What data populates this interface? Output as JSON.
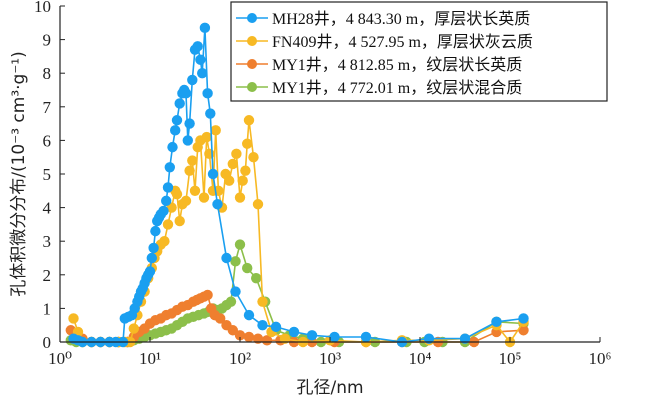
{
  "chart_data": {
    "type": "scatter",
    "mode": "lines+markers",
    "title": "",
    "xlabel": "孔径/nm",
    "ylabel": "孔体积微分分布/(10⁻³ cm³·g⁻¹)",
    "xscale": "log",
    "xlim_log10": [
      0,
      6
    ],
    "ylim": [
      0,
      10
    ],
    "xticks": [
      "10⁰",
      "10¹",
      "10²",
      "10³",
      "10⁴",
      "10⁵",
      "10⁶"
    ],
    "yticks": [
      "0",
      "1",
      "2",
      "3",
      "4",
      "5",
      "6",
      "7",
      "8",
      "9",
      "10"
    ],
    "grid": false,
    "legend_position": "top-right",
    "series": [
      {
        "name": "MH28井，4 843.30 m，厚层状长英质",
        "color": "#1a9ff0",
        "x_log10": [
          0.15,
          0.2,
          0.25,
          0.35,
          0.45,
          0.55,
          0.62,
          0.7,
          0.72,
          0.76,
          0.8,
          0.83,
          0.86,
          0.88,
          0.9,
          0.92,
          0.94,
          0.96,
          0.98,
          1.0,
          1.02,
          1.04,
          1.06,
          1.08,
          1.1,
          1.12,
          1.15,
          1.18,
          1.2,
          1.22,
          1.25,
          1.28,
          1.3,
          1.33,
          1.36,
          1.38,
          1.4,
          1.42,
          1.44,
          1.47,
          1.5,
          1.53,
          1.56,
          1.58,
          1.61,
          1.64,
          1.67,
          1.7,
          1.75,
          1.85,
          1.95,
          2.1,
          2.25,
          2.4,
          2.6,
          2.8,
          3.05,
          3.4,
          3.8,
          4.1,
          4.5,
          4.85,
          5.15
        ],
        "y": [
          0.1,
          0.05,
          0.0,
          0.0,
          0.0,
          0.0,
          0.0,
          0.0,
          0.7,
          0.75,
          0.8,
          1.0,
          1.2,
          1.35,
          1.5,
          1.6,
          1.75,
          1.9,
          2.0,
          2.1,
          2.5,
          2.8,
          3.3,
          3.6,
          3.7,
          3.8,
          3.9,
          4.2,
          4.6,
          5.2,
          5.8,
          6.3,
          6.6,
          7.1,
          7.4,
          7.5,
          7.4,
          6.0,
          6.5,
          7.8,
          8.7,
          8.8,
          8.4,
          8.0,
          9.35,
          7.4,
          6.8,
          5.0,
          4.1,
          2.5,
          1.5,
          0.8,
          0.5,
          0.45,
          0.3,
          0.2,
          0.15,
          0.15,
          0.0,
          0.1,
          0.1,
          0.6,
          0.7
        ]
      },
      {
        "name": "FN409井，4 527.95 m，厚层状灰云质",
        "color": "#f7b924",
        "x_log10": [
          0.15,
          0.2,
          0.25,
          0.35,
          0.45,
          0.55,
          0.65,
          0.72,
          0.78,
          0.82,
          0.86,
          0.9,
          0.94,
          0.98,
          1.02,
          1.05,
          1.08,
          1.12,
          1.16,
          1.2,
          1.24,
          1.28,
          1.3,
          1.33,
          1.36,
          1.4,
          1.44,
          1.47,
          1.5,
          1.53,
          1.56,
          1.6,
          1.63,
          1.66,
          1.7,
          1.73,
          1.76,
          1.8,
          1.84,
          1.88,
          1.92,
          1.96,
          2.0,
          2.03,
          2.06,
          2.08,
          2.1,
          2.15,
          2.2,
          2.25,
          2.35,
          2.5,
          2.7,
          3.0,
          3.4,
          3.8,
          4.1,
          4.5,
          4.85,
          5.0,
          5.15
        ],
        "y": [
          0.7,
          0.3,
          0.0,
          0.0,
          0.0,
          0.0,
          0.0,
          0.0,
          0.0,
          0.4,
          0.8,
          1.2,
          1.5,
          1.9,
          2.2,
          2.5,
          2.7,
          2.9,
          3.0,
          3.5,
          4.0,
          4.5,
          4.4,
          3.6,
          4.1,
          4.2,
          5.1,
          5.4,
          4.5,
          5.8,
          6.0,
          4.3,
          6.1,
          5.6,
          4.5,
          6.3,
          4.5,
          4.0,
          5.0,
          4.8,
          5.3,
          5.6,
          4.3,
          4.8,
          5.1,
          5.9,
          6.6,
          5.5,
          4.1,
          1.2,
          0.3,
          0.1,
          0.0,
          0.05,
          0.0,
          0.05,
          0.05,
          0.1,
          0.5,
          0.0,
          0.6
        ]
      },
      {
        "name": "MY1井，4 812.85 m，纹层状长英质",
        "color": "#ef7f2f",
        "x_log10": [
          0.12,
          0.18,
          0.25,
          0.35,
          0.45,
          0.55,
          0.65,
          0.75,
          0.82,
          0.88,
          0.94,
          1.0,
          1.06,
          1.12,
          1.18,
          1.24,
          1.3,
          1.36,
          1.42,
          1.48,
          1.52,
          1.56,
          1.6,
          1.64,
          1.68,
          1.72,
          1.78,
          1.85,
          1.92,
          2.0,
          2.1,
          2.2,
          2.3,
          2.45,
          2.6,
          2.8,
          3.05,
          3.4,
          3.8,
          4.2,
          4.6,
          4.85,
          5.15
        ],
        "y": [
          0.35,
          0.2,
          0.1,
          0.0,
          0.0,
          0.0,
          0.0,
          0.0,
          0.15,
          0.3,
          0.4,
          0.55,
          0.65,
          0.7,
          0.8,
          0.85,
          0.95,
          1.05,
          1.1,
          1.2,
          1.25,
          1.3,
          1.35,
          1.4,
          1.0,
          0.8,
          0.7,
          0.5,
          0.35,
          0.2,
          0.15,
          0.1,
          0.05,
          0.05,
          0.0,
          0.0,
          0.0,
          0.0,
          0.0,
          0.0,
          0.0,
          0.3,
          0.35
        ]
      },
      {
        "name": "MY1井，4 772.01 m，纹层状混合质",
        "color": "#8cbf4a",
        "x_log10": [
          0.12,
          0.18,
          0.25,
          0.35,
          0.45,
          0.55,
          0.65,
          0.75,
          0.82,
          0.88,
          0.94,
          1.0,
          1.06,
          1.12,
          1.18,
          1.24,
          1.3,
          1.36,
          1.42,
          1.48,
          1.54,
          1.6,
          1.65,
          1.7,
          1.75,
          1.8,
          1.85,
          1.9,
          1.95,
          2.0,
          2.08,
          2.18,
          2.28,
          2.4,
          2.55,
          2.7,
          2.9,
          3.1,
          3.5,
          3.85,
          4.05,
          4.25,
          4.5,
          4.85,
          5.15
        ],
        "y": [
          0.05,
          0.0,
          0.0,
          0.0,
          0.0,
          0.0,
          0.0,
          0.0,
          0.05,
          0.1,
          0.15,
          0.2,
          0.25,
          0.3,
          0.35,
          0.4,
          0.5,
          0.6,
          0.7,
          0.75,
          0.8,
          0.85,
          0.9,
          1.0,
          0.95,
          1.0,
          1.1,
          1.2,
          2.4,
          2.9,
          2.2,
          1.9,
          1.2,
          0.35,
          0.2,
          0.1,
          0.0,
          0.0,
          0.0,
          0.0,
          0.0,
          0.0,
          0.0,
          0.6,
          0.55
        ]
      }
    ]
  }
}
